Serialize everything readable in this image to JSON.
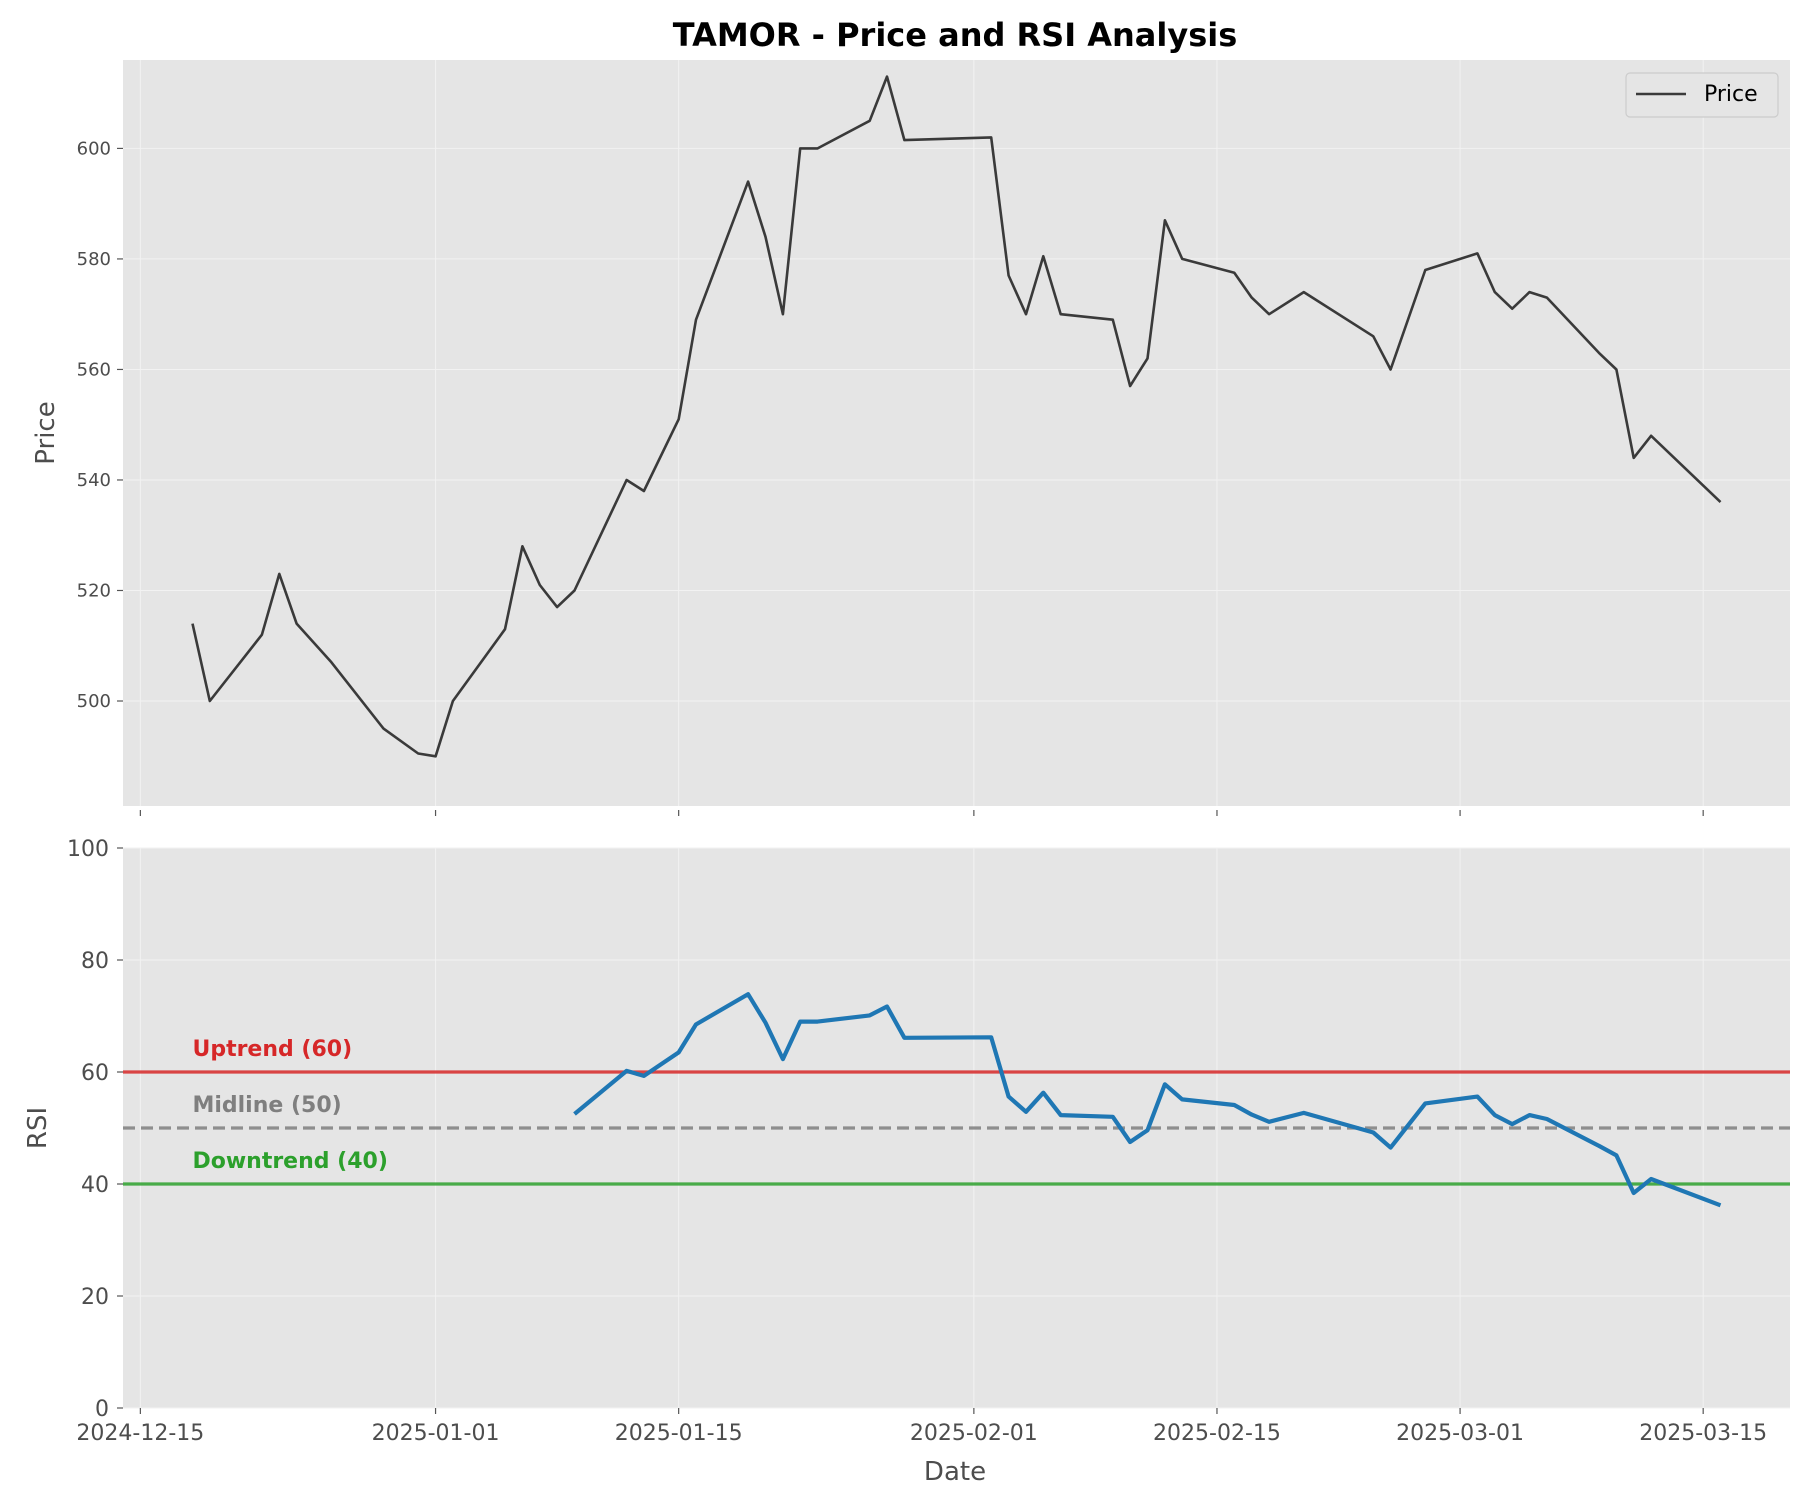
{
  "chart_data": {
    "title": "TAMOR - Price and RSI Analysis",
    "x_label": "Date",
    "x_ticks": [
      "2024-12-15",
      "2025-01-01",
      "2025-01-15",
      "2025-02-01",
      "2025-02-15",
      "2025-03-01",
      "2025-03-15"
    ],
    "x_range": [
      "2024-12-14",
      "2025-03-20"
    ],
    "grid": true,
    "price_panel": {
      "type": "line",
      "y_label": "Price",
      "y_ticks": [
        500,
        520,
        540,
        560,
        580,
        600
      ],
      "y_range": [
        481,
        616
      ],
      "legend": {
        "position": "top-right",
        "entries": [
          "Price"
        ]
      },
      "color": "#3a3a3a",
      "series": {
        "name": "Price",
        "points": [
          [
            "2024-12-18",
            514
          ],
          [
            "2024-12-19",
            500
          ],
          [
            "2024-12-22",
            512
          ],
          [
            "2024-12-23",
            523
          ],
          [
            "2024-12-24",
            514
          ],
          [
            "2024-12-26",
            507
          ],
          [
            "2024-12-29",
            495
          ],
          [
            "2024-12-31",
            490.5
          ],
          [
            "2025-01-01",
            490
          ],
          [
            "2025-01-02",
            500
          ],
          [
            "2025-01-05",
            513
          ],
          [
            "2025-01-06",
            528
          ],
          [
            "2025-01-07",
            521
          ],
          [
            "2025-01-08",
            517
          ],
          [
            "2025-01-09",
            520
          ],
          [
            "2025-01-12",
            540
          ],
          [
            "2025-01-13",
            538
          ],
          [
            "2025-01-15",
            551
          ],
          [
            "2025-01-16",
            569
          ],
          [
            "2025-01-19",
            594
          ],
          [
            "2025-01-20",
            584
          ],
          [
            "2025-01-21",
            570
          ],
          [
            "2025-01-22",
            600
          ],
          [
            "2025-01-23",
            600
          ],
          [
            "2025-01-26",
            605
          ],
          [
            "2025-01-27",
            613
          ],
          [
            "2025-01-28",
            601.5
          ],
          [
            "2025-02-02",
            602
          ],
          [
            "2025-02-03",
            577
          ],
          [
            "2025-02-04",
            570
          ],
          [
            "2025-02-05",
            580.5
          ],
          [
            "2025-02-06",
            570
          ],
          [
            "2025-02-09",
            569
          ],
          [
            "2025-02-10",
            557
          ],
          [
            "2025-02-11",
            562
          ],
          [
            "2025-02-12",
            587
          ],
          [
            "2025-02-13",
            580
          ],
          [
            "2025-02-16",
            577.5
          ],
          [
            "2025-02-17",
            573
          ],
          [
            "2025-02-18",
            570
          ],
          [
            "2025-02-20",
            574
          ],
          [
            "2025-02-24",
            566
          ],
          [
            "2025-02-25",
            560
          ],
          [
            "2025-02-27",
            578
          ],
          [
            "2025-03-02",
            581
          ],
          [
            "2025-03-03",
            574
          ],
          [
            "2025-03-04",
            571
          ],
          [
            "2025-03-05",
            574
          ],
          [
            "2025-03-06",
            573
          ],
          [
            "2025-03-09",
            563
          ],
          [
            "2025-03-10",
            560
          ],
          [
            "2025-03-11",
            544
          ],
          [
            "2025-03-12",
            548
          ],
          [
            "2025-03-16",
            536
          ]
        ]
      }
    },
    "rsi_panel": {
      "type": "line",
      "y_label": "RSI",
      "y_ticks": [
        0,
        20,
        40,
        60,
        80,
        100
      ],
      "y_range": [
        0,
        100
      ],
      "color": "#1f77b4",
      "series": {
        "name": "RSI",
        "points": [
          [
            "2025-01-09",
            52.5
          ],
          [
            "2025-01-12",
            60.2
          ],
          [
            "2025-01-13",
            59.3
          ],
          [
            "2025-01-15",
            63.5
          ],
          [
            "2025-01-16",
            68.5
          ],
          [
            "2025-01-19",
            73.9
          ],
          [
            "2025-01-20",
            68.8
          ],
          [
            "2025-01-21",
            62.3
          ],
          [
            "2025-01-22",
            69
          ],
          [
            "2025-01-23",
            69
          ],
          [
            "2025-01-26",
            70.1
          ],
          [
            "2025-01-27",
            71.7
          ],
          [
            "2025-01-28",
            66.1
          ],
          [
            "2025-02-02",
            66.2
          ],
          [
            "2025-02-03",
            55.6
          ],
          [
            "2025-02-04",
            52.9
          ],
          [
            "2025-02-05",
            56.3
          ],
          [
            "2025-02-06",
            52.3
          ],
          [
            "2025-02-09",
            52
          ],
          [
            "2025-02-10",
            47.5
          ],
          [
            "2025-02-11",
            49.6
          ],
          [
            "2025-02-12",
            57.8
          ],
          [
            "2025-02-13",
            55.1
          ],
          [
            "2025-02-16",
            54.1
          ],
          [
            "2025-02-17",
            52.4
          ],
          [
            "2025-02-18",
            51.1
          ],
          [
            "2025-02-20",
            52.7
          ],
          [
            "2025-02-24",
            49.2
          ],
          [
            "2025-02-25",
            46.5
          ],
          [
            "2025-02-27",
            54.4
          ],
          [
            "2025-03-02",
            55.6
          ],
          [
            "2025-03-03",
            52.3
          ],
          [
            "2025-03-04",
            50.7
          ],
          [
            "2025-03-05",
            52.3
          ],
          [
            "2025-03-06",
            51.6
          ],
          [
            "2025-03-09",
            46.8
          ],
          [
            "2025-03-10",
            45.1
          ],
          [
            "2025-03-11",
            38.4
          ],
          [
            "2025-03-12",
            40.9
          ],
          [
            "2025-03-16",
            36.2
          ]
        ]
      },
      "reference_lines": [
        {
          "value": 60,
          "label": "Uptrend (60)",
          "color": "#d62728",
          "style": "solid"
        },
        {
          "value": 50,
          "label": "Midline (50)",
          "color": "#7f7f7f",
          "style": "dashed"
        },
        {
          "value": 40,
          "label": "Downtrend (40)",
          "color": "#2ca02c",
          "style": "solid"
        }
      ]
    }
  }
}
